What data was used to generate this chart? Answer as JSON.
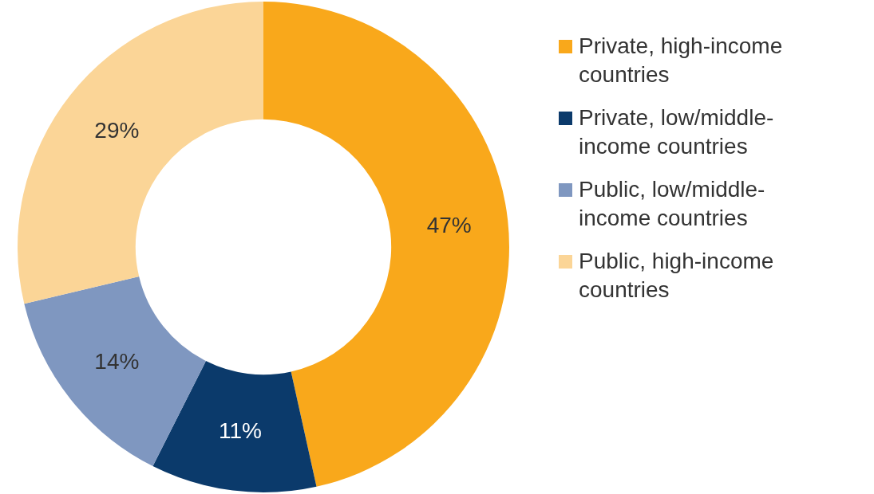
{
  "chart_data": {
    "type": "donut",
    "categories": [
      "Private, high-income countries",
      "Private, low/middle-income countries",
      "Public, low/middle-income countries",
      "Public, high-income countries"
    ],
    "values": [
      47,
      11,
      14,
      29
    ],
    "colors": [
      "#f9a81b",
      "#0b3a6b",
      "#7f97c0",
      "#fbd597"
    ],
    "value_labels": [
      "47%",
      "11%",
      "14%",
      "29%"
    ],
    "legend": "right"
  }
}
